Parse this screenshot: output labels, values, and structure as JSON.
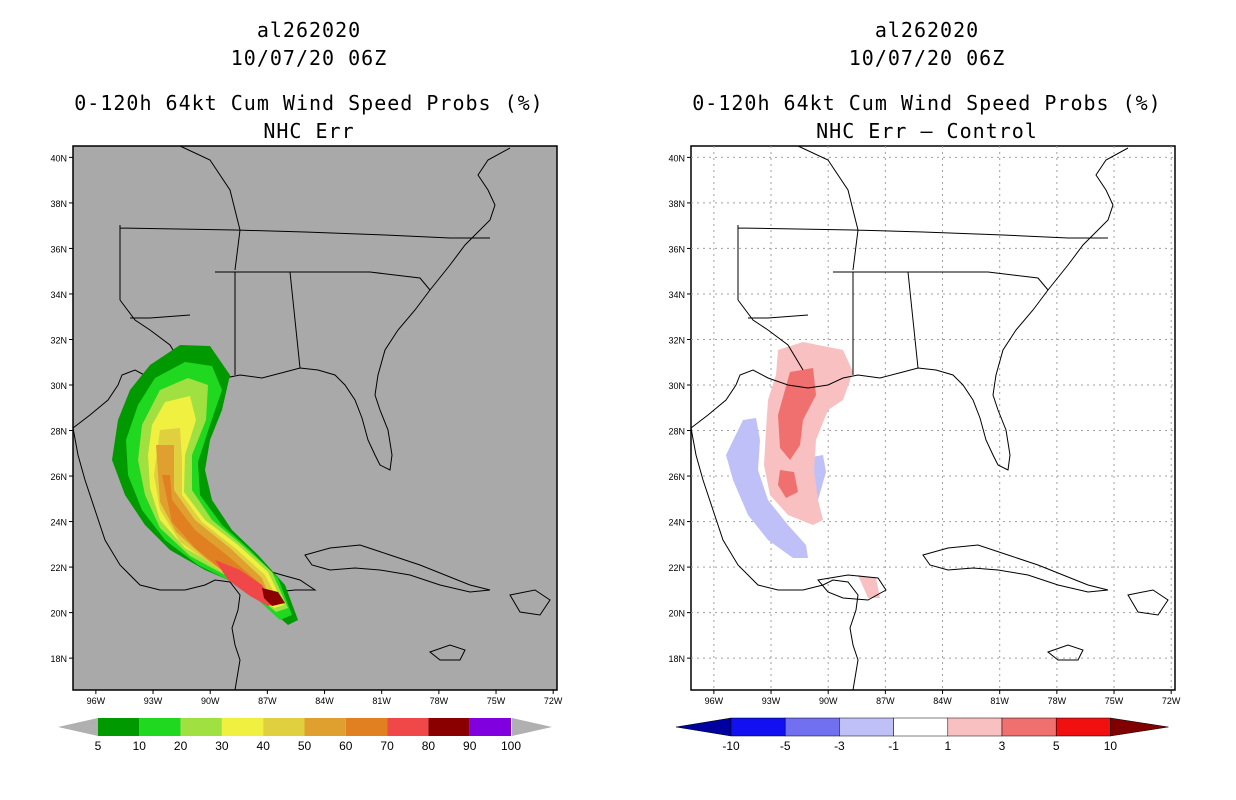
{
  "panels": [
    {
      "storm_id": "al262020",
      "datetime": "10/07/20 06Z",
      "title": "0-120h 64kt Cum Wind Speed Probs (%)",
      "subtitle": "NHC Err",
      "map_background": "#a9a9a9",
      "colorbar_labels": [
        "5",
        "10",
        "20",
        "30",
        "40",
        "50",
        "60",
        "70",
        "80",
        "90",
        "100"
      ],
      "colorbar_colors": [
        "#009a00",
        "#20d820",
        "#a0e040",
        "#f0f040",
        "#e0d040",
        "#e0a030",
        "#e08020",
        "#f04848",
        "#8a0000",
        "#8000e0"
      ]
    },
    {
      "storm_id": "al262020",
      "datetime": "10/07/20 06Z",
      "title": "0-120h 64kt Cum Wind Speed Probs (%)",
      "subtitle": "NHC Err – Control",
      "map_background": "#ffffff",
      "colorbar_labels": [
        "-10",
        "-5",
        "-3",
        "-1",
        "1",
        "3",
        "5",
        "10"
      ],
      "colorbar_colors": [
        "#0000a0",
        "#1010f0",
        "#7070f0",
        "#c0c0f8",
        "#ffffff",
        "#f8c0c0",
        "#f07070",
        "#f01010",
        "#800000"
      ]
    }
  ],
  "axes": {
    "lat_labels": [
      "40N",
      "38N",
      "36N",
      "34N",
      "32N",
      "30N",
      "28N",
      "26N",
      "24N",
      "22N",
      "20N",
      "18N"
    ],
    "lon_labels": [
      "96W",
      "93W",
      "90W",
      "87W",
      "84W",
      "81W",
      "78W",
      "75W",
      "72W"
    ],
    "lat_values": [
      40,
      38,
      36,
      34,
      32,
      30,
      28,
      26,
      24,
      22,
      20,
      18
    ],
    "lon_values": [
      -96,
      -93,
      -90,
      -87,
      -84,
      -81,
      -78,
      -75,
      -72
    ]
  }
}
